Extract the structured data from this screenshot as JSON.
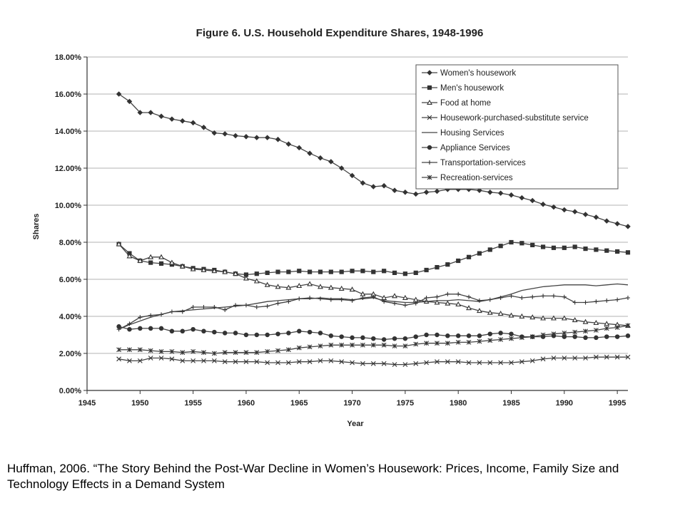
{
  "chart_data": {
    "type": "line",
    "title": "Figure 6. U.S. Household Expenditure Shares, 1948-1996",
    "xlabel": "Year",
    "ylabel": "Shares",
    "xlim": [
      1945,
      1996
    ],
    "ylim": [
      0,
      18
    ],
    "x_ticks": [
      1945,
      1950,
      1955,
      1960,
      1965,
      1970,
      1975,
      1980,
      1985,
      1990,
      1995
    ],
    "y_ticks": [
      0,
      2,
      4,
      6,
      8,
      10,
      12,
      14,
      16,
      18
    ],
    "y_tick_labels": [
      "0.00%",
      "2.00%",
      "4.00%",
      "6.00%",
      "8.00%",
      "10.00%",
      "12.00%",
      "14.00%",
      "16.00%",
      "18.00%"
    ],
    "grid": "horizontal",
    "legend_position": "top-right",
    "x": [
      1948,
      1949,
      1950,
      1951,
      1952,
      1953,
      1954,
      1955,
      1956,
      1957,
      1958,
      1959,
      1960,
      1961,
      1962,
      1963,
      1964,
      1965,
      1966,
      1967,
      1968,
      1969,
      1970,
      1971,
      1972,
      1973,
      1974,
      1975,
      1976,
      1977,
      1978,
      1979,
      1980,
      1981,
      1982,
      1983,
      1984,
      1985,
      1986,
      1987,
      1988,
      1989,
      1990,
      1991,
      1992,
      1993,
      1994,
      1995,
      1996
    ],
    "series": [
      {
        "name": "Women's housework",
        "marker": "diamond",
        "values": [
          16.0,
          15.6,
          15.0,
          15.0,
          14.8,
          14.65,
          14.55,
          14.45,
          14.2,
          13.9,
          13.85,
          13.75,
          13.7,
          13.65,
          13.65,
          13.55,
          13.3,
          13.1,
          12.8,
          12.55,
          12.35,
          12.0,
          11.6,
          11.2,
          11.0,
          11.05,
          10.8,
          10.7,
          10.6,
          10.7,
          10.75,
          10.85,
          10.85,
          10.85,
          10.8,
          10.7,
          10.65,
          10.55,
          10.4,
          10.25,
          10.05,
          9.9,
          9.75,
          9.65,
          9.5,
          9.35,
          9.15,
          9.0,
          8.85
        ]
      },
      {
        "name": "Men's housework",
        "marker": "square",
        "values": [
          7.9,
          7.4,
          7.0,
          6.9,
          6.85,
          6.8,
          6.7,
          6.6,
          6.55,
          6.5,
          6.4,
          6.3,
          6.25,
          6.3,
          6.35,
          6.4,
          6.4,
          6.45,
          6.4,
          6.4,
          6.4,
          6.4,
          6.45,
          6.45,
          6.4,
          6.45,
          6.35,
          6.3,
          6.35,
          6.5,
          6.65,
          6.8,
          7.0,
          7.2,
          7.4,
          7.6,
          7.8,
          8.0,
          7.95,
          7.85,
          7.75,
          7.7,
          7.7,
          7.75,
          7.65,
          7.6,
          7.55,
          7.5,
          7.45
        ]
      },
      {
        "name": "Food at home",
        "marker": "triangle",
        "values": [
          7.9,
          7.25,
          7.0,
          7.2,
          7.2,
          6.9,
          6.7,
          6.55,
          6.5,
          6.45,
          6.4,
          6.3,
          6.05,
          5.9,
          5.7,
          5.6,
          5.55,
          5.65,
          5.75,
          5.6,
          5.55,
          5.5,
          5.45,
          5.2,
          5.2,
          5.0,
          5.1,
          5.0,
          4.9,
          4.8,
          4.75,
          4.7,
          4.65,
          4.45,
          4.3,
          4.2,
          4.15,
          4.05,
          4.0,
          3.95,
          3.9,
          3.9,
          3.9,
          3.8,
          3.7,
          3.65,
          3.6,
          3.55,
          3.5
        ]
      },
      {
        "name": "Housework-purchased-substitute service",
        "marker": "x",
        "values": [
          1.7,
          1.6,
          1.6,
          1.75,
          1.75,
          1.7,
          1.6,
          1.6,
          1.6,
          1.6,
          1.55,
          1.55,
          1.55,
          1.55,
          1.5,
          1.5,
          1.5,
          1.55,
          1.55,
          1.6,
          1.6,
          1.55,
          1.5,
          1.45,
          1.45,
          1.45,
          1.4,
          1.4,
          1.45,
          1.5,
          1.55,
          1.55,
          1.55,
          1.5,
          1.5,
          1.5,
          1.5,
          1.5,
          1.55,
          1.6,
          1.7,
          1.75,
          1.75,
          1.75,
          1.75,
          1.8,
          1.8,
          1.8,
          1.8
        ]
      },
      {
        "name": "Housing Services",
        "marker": "none",
        "values": [
          3.3,
          3.55,
          3.75,
          3.95,
          4.1,
          4.25,
          4.3,
          4.35,
          4.4,
          4.45,
          4.5,
          4.55,
          4.6,
          4.7,
          4.8,
          4.85,
          4.9,
          4.95,
          4.95,
          5.0,
          4.95,
          4.95,
          4.9,
          4.95,
          5.0,
          4.85,
          4.8,
          4.75,
          4.75,
          4.8,
          4.85,
          4.85,
          4.9,
          4.85,
          4.8,
          4.9,
          5.05,
          5.2,
          5.4,
          5.5,
          5.6,
          5.65,
          5.7,
          5.7,
          5.7,
          5.65,
          5.7,
          5.75,
          5.7
        ]
      },
      {
        "name": "Appliance Services",
        "marker": "circle",
        "values": [
          3.45,
          3.3,
          3.35,
          3.35,
          3.35,
          3.2,
          3.2,
          3.3,
          3.2,
          3.15,
          3.1,
          3.1,
          3.0,
          3.0,
          3.0,
          3.05,
          3.1,
          3.2,
          3.15,
          3.1,
          2.95,
          2.9,
          2.85,
          2.85,
          2.8,
          2.75,
          2.8,
          2.8,
          2.9,
          3.0,
          3.0,
          2.95,
          2.95,
          2.95,
          2.95,
          3.05,
          3.1,
          3.05,
          2.9,
          2.9,
          2.9,
          2.95,
          2.9,
          2.9,
          2.85,
          2.85,
          2.9,
          2.9,
          2.95
        ]
      },
      {
        "name": "Transportation-services",
        "marker": "plus",
        "values": [
          3.3,
          3.6,
          3.95,
          4.05,
          4.1,
          4.25,
          4.25,
          4.5,
          4.5,
          4.5,
          4.35,
          4.6,
          4.6,
          4.5,
          4.55,
          4.7,
          4.8,
          4.95,
          5.0,
          4.95,
          4.9,
          4.9,
          4.85,
          5.0,
          5.05,
          4.8,
          4.7,
          4.6,
          4.7,
          5.0,
          5.05,
          5.2,
          5.2,
          5.05,
          4.85,
          4.9,
          5.0,
          5.1,
          5.0,
          5.05,
          5.1,
          5.1,
          5.05,
          4.75,
          4.75,
          4.8,
          4.85,
          4.9,
          5.0
        ]
      },
      {
        "name": "Recreation-services",
        "marker": "asterisk",
        "values": [
          2.2,
          2.2,
          2.2,
          2.15,
          2.1,
          2.1,
          2.05,
          2.1,
          2.05,
          2.0,
          2.05,
          2.05,
          2.05,
          2.05,
          2.1,
          2.15,
          2.2,
          2.3,
          2.35,
          2.4,
          2.45,
          2.45,
          2.45,
          2.45,
          2.45,
          2.45,
          2.4,
          2.4,
          2.5,
          2.55,
          2.55,
          2.55,
          2.6,
          2.6,
          2.65,
          2.7,
          2.75,
          2.8,
          2.85,
          2.9,
          3.0,
          3.05,
          3.1,
          3.15,
          3.2,
          3.25,
          3.35,
          3.4,
          3.5
        ]
      }
    ]
  },
  "caption": "Huffman, 2006. “The Story Behind the Post-War Decline in Women’s Housework: Prices, Income, Family Size and Technology Effects in a Demand System"
}
